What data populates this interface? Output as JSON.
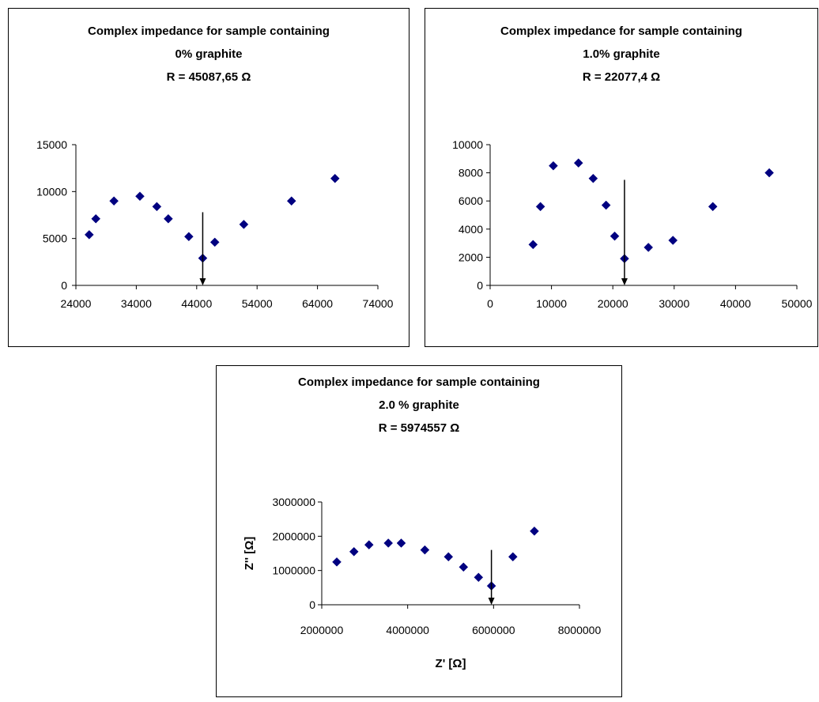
{
  "chart_data": [
    {
      "type": "scatter",
      "title_lines": [
        "Complex impedance for sample containing",
        "0% graphite",
        "R = 45087,65 Ω"
      ],
      "xlabel": "",
      "ylabel": "",
      "xlim": [
        24000,
        74000
      ],
      "ylim": [
        0,
        15000
      ],
      "xticks": [
        24000,
        34000,
        44000,
        54000,
        64000,
        74000
      ],
      "yticks": [
        0,
        5000,
        10000,
        15000
      ],
      "grid": false,
      "marker": "diamond",
      "color": "#000080",
      "points": [
        {
          "x": 26200,
          "y": 5400
        },
        {
          "x": 27300,
          "y": 7100
        },
        {
          "x": 30300,
          "y": 9000
        },
        {
          "x": 34600,
          "y": 9500
        },
        {
          "x": 37400,
          "y": 8400
        },
        {
          "x": 39300,
          "y": 7100
        },
        {
          "x": 42700,
          "y": 5200
        },
        {
          "x": 45000,
          "y": 2900
        },
        {
          "x": 47000,
          "y": 4600
        },
        {
          "x": 51800,
          "y": 6500
        },
        {
          "x": 59700,
          "y": 9000
        },
        {
          "x": 66900,
          "y": 11400
        }
      ],
      "arrow": {
        "x": 45000,
        "y_from": 7800,
        "y_to": 0
      }
    },
    {
      "type": "scatter",
      "title_lines": [
        "Complex impedance for sample containing",
        "1.0% graphite",
        "R = 22077,4 Ω"
      ],
      "xlabel": "",
      "ylabel": "",
      "xlim": [
        0,
        50000
      ],
      "ylim": [
        0,
        10000
      ],
      "xticks": [
        0,
        10000,
        20000,
        30000,
        40000,
        50000
      ],
      "yticks": [
        0,
        2000,
        4000,
        6000,
        8000,
        10000
      ],
      "grid": false,
      "marker": "diamond",
      "color": "#000080",
      "points": [
        {
          "x": 7000,
          "y": 2900
        },
        {
          "x": 8200,
          "y": 5600
        },
        {
          "x": 10300,
          "y": 8500
        },
        {
          "x": 14400,
          "y": 8700
        },
        {
          "x": 16800,
          "y": 7600
        },
        {
          "x": 18900,
          "y": 5700
        },
        {
          "x": 20300,
          "y": 3500
        },
        {
          "x": 21900,
          "y": 1900
        },
        {
          "x": 25800,
          "y": 2700
        },
        {
          "x": 29800,
          "y": 3200
        },
        {
          "x": 36300,
          "y": 5600
        },
        {
          "x": 45500,
          "y": 8000
        }
      ],
      "arrow": {
        "x": 21900,
        "y_from": 7500,
        "y_to": 0
      }
    },
    {
      "type": "scatter",
      "title_lines": [
        "Complex impedance for sample containing",
        "2.0 % graphite",
        "R = 5974557 Ω"
      ],
      "xlabel": "Z' [Ω]",
      "ylabel": "Z'' [Ω]",
      "xlim": [
        2000000,
        8000000
      ],
      "ylim": [
        0,
        3000000
      ],
      "xticks": [
        2000000,
        4000000,
        6000000,
        8000000
      ],
      "yticks": [
        0,
        1000000,
        2000000,
        3000000
      ],
      "grid": false,
      "marker": "diamond",
      "color": "#000080",
      "points": [
        {
          "x": 2350000,
          "y": 1250000
        },
        {
          "x": 2750000,
          "y": 1550000
        },
        {
          "x": 3100000,
          "y": 1750000
        },
        {
          "x": 3550000,
          "y": 1800000
        },
        {
          "x": 3850000,
          "y": 1800000
        },
        {
          "x": 4400000,
          "y": 1600000
        },
        {
          "x": 4950000,
          "y": 1400000
        },
        {
          "x": 5300000,
          "y": 1100000
        },
        {
          "x": 5650000,
          "y": 800000
        },
        {
          "x": 5950000,
          "y": 550000
        },
        {
          "x": 6450000,
          "y": 1400000
        },
        {
          "x": 6950000,
          "y": 2150000
        }
      ],
      "arrow": {
        "x": 5950000,
        "y_from": 1600000,
        "y_to": 0
      }
    }
  ]
}
